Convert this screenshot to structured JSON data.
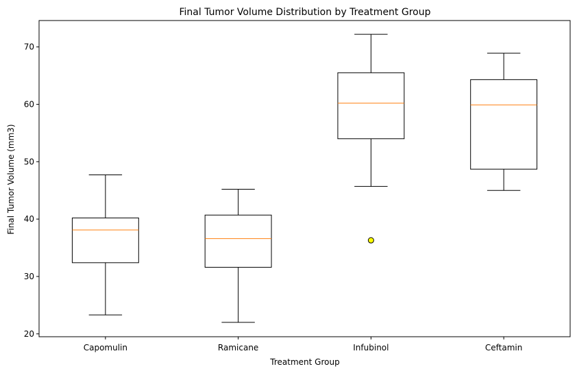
{
  "chart_data": {
    "type": "box",
    "title": "Final Tumor Volume Distribution by Treatment Group",
    "xlabel": "Treatment Group",
    "ylabel": "Final Tumor Volume (mm3)",
    "ylim": [
      19.5,
      74.6
    ],
    "yticks": [
      20,
      30,
      40,
      50,
      60,
      70
    ],
    "grid": false,
    "categories": [
      "Capomulin",
      "Ramicane",
      "Infubinol",
      "Ceftamin"
    ],
    "boxes": [
      {
        "name": "Capomulin",
        "whisker_low": 23.3,
        "q1": 32.4,
        "median": 38.1,
        "q3": 40.2,
        "whisker_high": 47.7,
        "outliers": []
      },
      {
        "name": "Ramicane",
        "whisker_low": 22.0,
        "q1": 31.6,
        "median": 36.6,
        "q3": 40.7,
        "whisker_high": 45.2,
        "outliers": []
      },
      {
        "name": "Infubinol",
        "whisker_low": 45.7,
        "q1": 54.0,
        "median": 60.2,
        "q3": 65.5,
        "whisker_high": 72.2,
        "outliers": [
          36.3
        ]
      },
      {
        "name": "Ceftamin",
        "whisker_low": 45.0,
        "q1": 48.7,
        "median": 59.9,
        "q3": 64.3,
        "whisker_high": 68.9,
        "outliers": []
      }
    ],
    "colors": {
      "box_edge": "#000000",
      "median": "#ff7f0e",
      "outlier_fill": "#ffff00",
      "outlier_edge": "#000000"
    }
  }
}
